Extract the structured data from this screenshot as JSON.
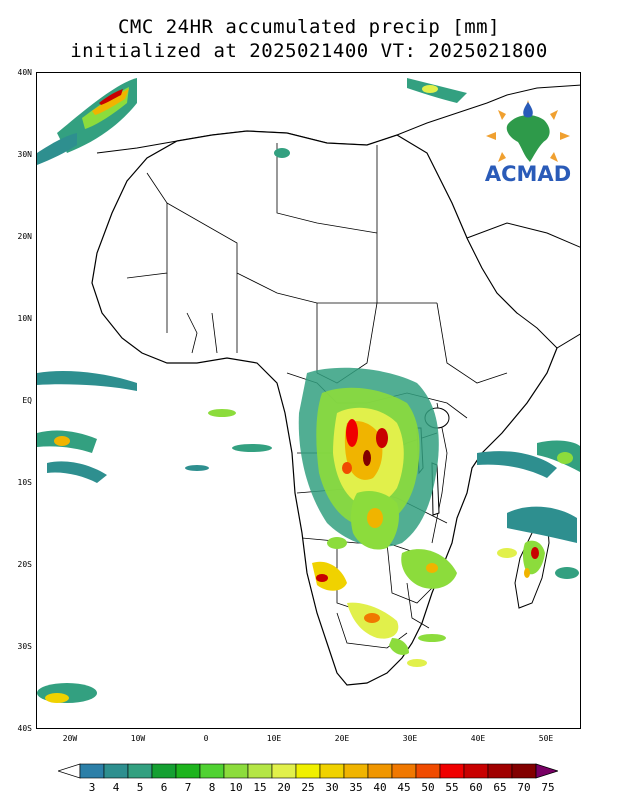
{
  "title": {
    "line1": "CMC 24HR accumulated precip [mm]",
    "line2": "initialized at 2025021400 VT: 2025021800"
  },
  "map": {
    "lat_labels": [
      "40N",
      "30N",
      "20N",
      "10N",
      "EQ",
      "10S",
      "20S",
      "30S",
      "40S"
    ],
    "lon_labels": [
      "20W",
      "10W",
      "0",
      "10E",
      "20E",
      "30E",
      "40E",
      "50E"
    ],
    "land_fill": "#ffffff",
    "border_color": "#000000"
  },
  "logo": {
    "text": "ACMAD",
    "icon": "africa-map-sun-icon",
    "text_color": "#2a5bb8"
  },
  "colorbar": {
    "levels": [
      "3",
      "4",
      "5",
      "6",
      "7",
      "8",
      "10",
      "15",
      "20",
      "25",
      "30",
      "35",
      "40",
      "45",
      "50",
      "55",
      "60",
      "65",
      "70",
      "75"
    ],
    "colors": [
      "#2c7fa8",
      "#2e8f8f",
      "#33a080",
      "#15a032",
      "#1eb41e",
      "#50d232",
      "#8cdc3c",
      "#b4e646",
      "#e1f04b",
      "#f0f000",
      "#f0d200",
      "#f0b400",
      "#f09600",
      "#f07800",
      "#f04b00",
      "#f00000",
      "#c80000",
      "#a00000",
      "#820000",
      "#6e0028",
      "#780064"
    ]
  }
}
